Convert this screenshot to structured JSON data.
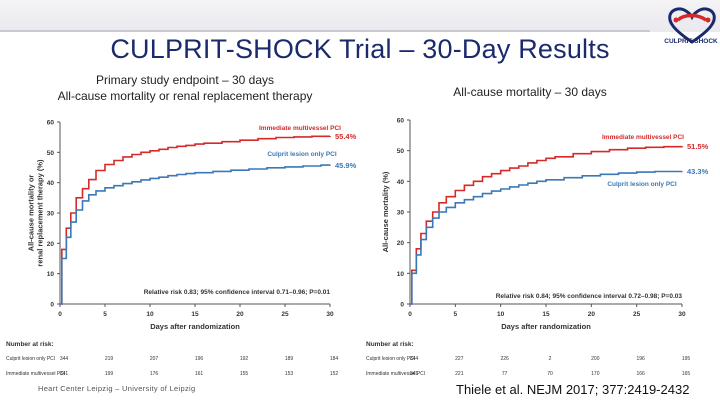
{
  "slide": {
    "title": "CULPRIT-SHOCK Trial – 30-Day Results",
    "logo_text": "CULPRIT-SHOCK",
    "footer_left": "Heart Center Leipzig – University of Leipzig",
    "footer_right": "Thiele et al. NEJM 2017; 377:2419-2432",
    "colors": {
      "title": "#1a2a6c",
      "red": "#d42a2a",
      "blue": "#3a78b8",
      "label_red": "#c0281e"
    }
  },
  "chart_data": [
    {
      "type": "line",
      "subtitle_lines": [
        "Primary study endpoint – 30 days",
        "All-cause mortality or renal replacement therapy"
      ],
      "ylabel_lines": [
        "All-cause mortality or",
        "renal replacement therapy (%)"
      ],
      "xlabel": "Days after randomization",
      "xlim": [
        0,
        30
      ],
      "ylim": [
        0,
        60
      ],
      "xticks": [
        0,
        5,
        10,
        15,
        20,
        25,
        30
      ],
      "yticks": [
        0,
        10,
        20,
        30,
        40,
        50,
        60
      ],
      "series": [
        {
          "name": "Immediate multivessel PCI",
          "color": "#d42a2a",
          "end_label": "55.4%",
          "points": [
            [
              0,
              0
            ],
            [
              0.2,
              18
            ],
            [
              0.7,
              25
            ],
            [
              1.2,
              30
            ],
            [
              1.8,
              35
            ],
            [
              2.5,
              38
            ],
            [
              3.2,
              41
            ],
            [
              4,
              44
            ],
            [
              5,
              46
            ],
            [
              6,
              47.3
            ],
            [
              7,
              48.5
            ],
            [
              8,
              49.3
            ],
            [
              9,
              50
            ],
            [
              10,
              50.5
            ],
            [
              11,
              51
            ],
            [
              12,
              51.6
            ],
            [
              13,
              52
            ],
            [
              14,
              52.3
            ],
            [
              15,
              52.7
            ],
            [
              16,
              53
            ],
            [
              18,
              53.5
            ],
            [
              20,
              54
            ],
            [
              22,
              54.5
            ],
            [
              24,
              54.9
            ],
            [
              26,
              55.1
            ],
            [
              28,
              55.3
            ],
            [
              30,
              55.4
            ]
          ]
        },
        {
          "name": "Culprit lesion only PCI",
          "color": "#3a78b8",
          "end_label": "45.9%",
          "points": [
            [
              0,
              0
            ],
            [
              0.2,
              15
            ],
            [
              0.7,
              22
            ],
            [
              1.2,
              27
            ],
            [
              1.8,
              31
            ],
            [
              2.5,
              34
            ],
            [
              3.2,
              36
            ],
            [
              4,
              37.3
            ],
            [
              5,
              38.3
            ],
            [
              6,
              39
            ],
            [
              7,
              39.7
            ],
            [
              8,
              40.3
            ],
            [
              9,
              40.9
            ],
            [
              10,
              41.4
            ],
            [
              11,
              41.8
            ],
            [
              12,
              42.3
            ],
            [
              13,
              42.7
            ],
            [
              14,
              43
            ],
            [
              15,
              43.3
            ],
            [
              17,
              43.7
            ],
            [
              19,
              44.1
            ],
            [
              21,
              44.5
            ],
            [
              23,
              44.9
            ],
            [
              25,
              45.2
            ],
            [
              27,
              45.5
            ],
            [
              29,
              45.8
            ],
            [
              30,
              45.9
            ]
          ]
        }
      ],
      "annotation": "Relative risk 0.83; 95% confidence interval 0.71–0.96; P=0.01",
      "risk_table": {
        "heading": "Number at risk:",
        "rows": [
          {
            "label": "Culprit lesion only PCI",
            "values": [
              "344",
              "219",
              "207",
              "196",
              "192",
              "189",
              "184"
            ]
          },
          {
            "label": "Immediate multivessel PCI",
            "values": [
              "341",
              "199",
              "176",
              "161",
              "155",
              "153",
              "152"
            ]
          }
        ]
      }
    },
    {
      "type": "line",
      "subtitle_lines": [
        "All-cause mortality – 30 days"
      ],
      "ylabel_lines": [
        "All-cause mortality (%)"
      ],
      "xlabel": "Days after randomization",
      "xlim": [
        0,
        30
      ],
      "ylim": [
        0,
        60
      ],
      "xticks": [
        0,
        5,
        10,
        15,
        20,
        25,
        30
      ],
      "yticks": [
        0,
        10,
        20,
        30,
        40,
        50,
        60
      ],
      "series": [
        {
          "name": "Immediate multivessel PCI",
          "color": "#d42a2a",
          "end_label": "51.5%",
          "points": [
            [
              0,
              0
            ],
            [
              0.2,
              11
            ],
            [
              0.7,
              18
            ],
            [
              1.2,
              23
            ],
            [
              1.8,
              27
            ],
            [
              2.5,
              30
            ],
            [
              3.2,
              33
            ],
            [
              4,
              35
            ],
            [
              5,
              37
            ],
            [
              6,
              38.7
            ],
            [
              7,
              40
            ],
            [
              8,
              41.5
            ],
            [
              9,
              42.5
            ],
            [
              10,
              43.5
            ],
            [
              11,
              44.3
            ],
            [
              12,
              45
            ],
            [
              13,
              46
            ],
            [
              14,
              46.8
            ],
            [
              15,
              47.5
            ],
            [
              16,
              48
            ],
            [
              18,
              49
            ],
            [
              20,
              49.7
            ],
            [
              22,
              50.3
            ],
            [
              24,
              50.8
            ],
            [
              26,
              51.1
            ],
            [
              28,
              51.3
            ],
            [
              30,
              51.5
            ]
          ]
        },
        {
          "name": "Culprit lesion only PCI",
          "color": "#3a78b8",
          "end_label": "43.3%",
          "points": [
            [
              0,
              0
            ],
            [
              0.2,
              10
            ],
            [
              0.7,
              16
            ],
            [
              1.2,
              21
            ],
            [
              1.8,
              25
            ],
            [
              2.5,
              28
            ],
            [
              3.2,
              30
            ],
            [
              4,
              31.5
            ],
            [
              5,
              33
            ],
            [
              6,
              34
            ],
            [
              7,
              35
            ],
            [
              8,
              36
            ],
            [
              9,
              36.8
            ],
            [
              10,
              37.5
            ],
            [
              11,
              38.2
            ],
            [
              12,
              38.8
            ],
            [
              13,
              39.4
            ],
            [
              14,
              40
            ],
            [
              15,
              40.5
            ],
            [
              17,
              41.2
            ],
            [
              19,
              41.8
            ],
            [
              21,
              42.3
            ],
            [
              23,
              42.7
            ],
            [
              25,
              43
            ],
            [
              27,
              43.2
            ],
            [
              30,
              43.3
            ]
          ]
        }
      ],
      "annotation": "Relative risk 0.84; 95% confidence interval 0.72–0.98; P=0.03",
      "risk_table": {
        "heading": "Number at risk:",
        "rows": [
          {
            "label": "Culprit lesion only PCI",
            "values": [
              "344",
              "227",
              "226",
              "2",
              "200",
              "196",
              "195"
            ]
          },
          {
            "label": "Immediate multivessel PCI",
            "values": [
              "341",
              "221",
              "77",
              "70",
              "170",
              "166",
              "165"
            ]
          }
        ]
      }
    }
  ]
}
